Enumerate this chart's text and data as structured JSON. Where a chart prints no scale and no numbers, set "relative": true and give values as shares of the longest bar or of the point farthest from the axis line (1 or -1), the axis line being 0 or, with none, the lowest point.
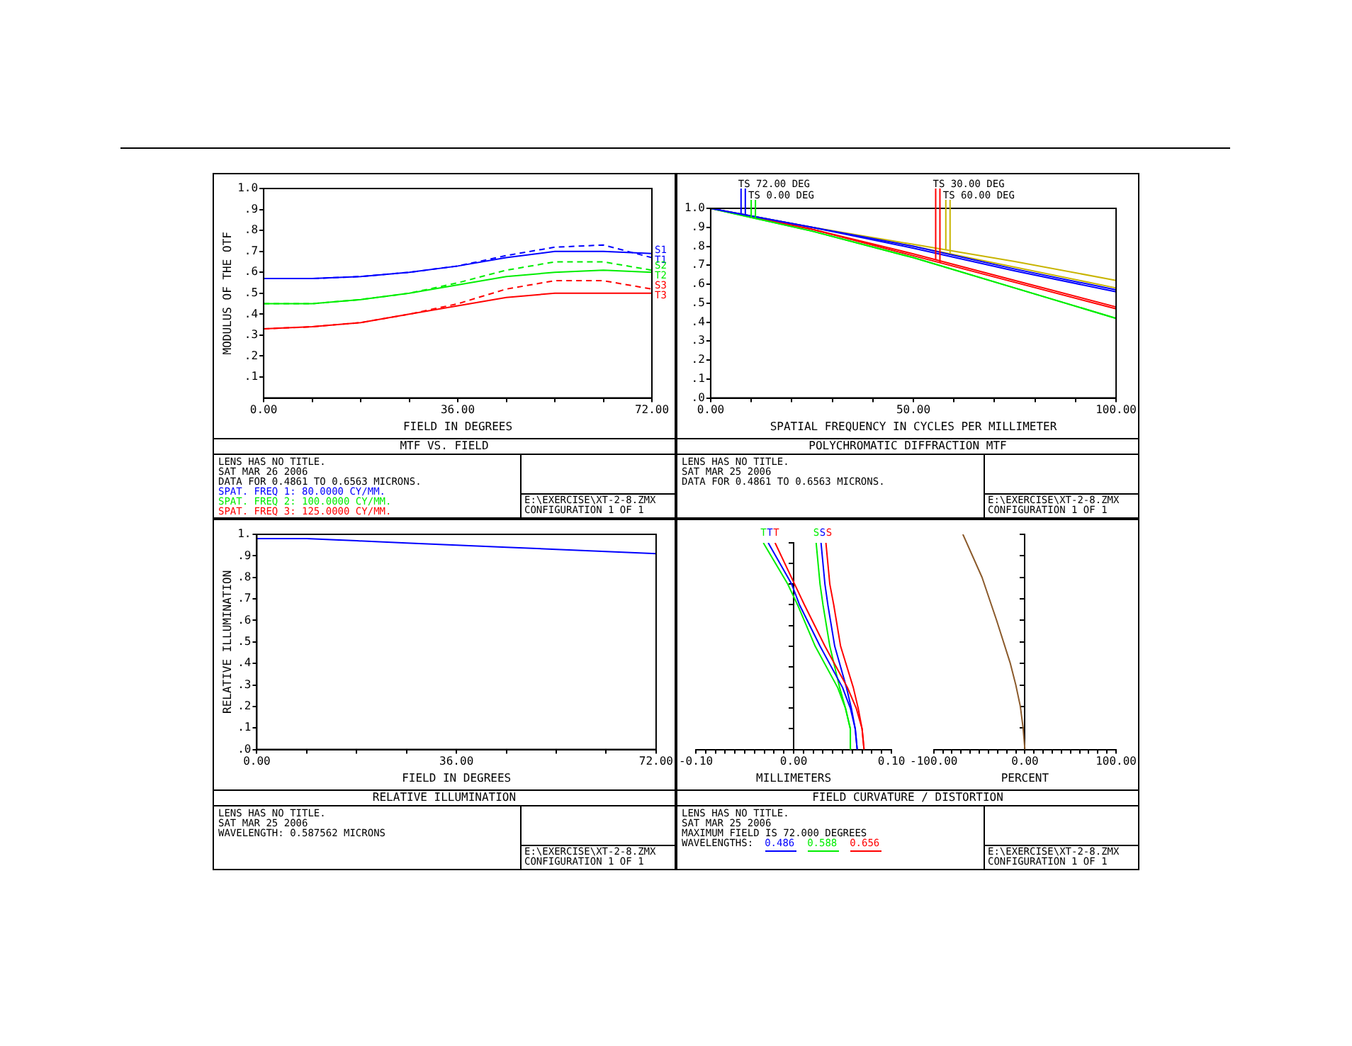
{
  "chart_data": [
    {
      "type": "line",
      "title": "MTF VS. FIELD",
      "xlabel": "FIELD IN DEGREES",
      "ylabel": "MODULUS OF THE OTF",
      "x": [
        0,
        9,
        18,
        27,
        36,
        45,
        54,
        63,
        72
      ],
      "xlim": [
        0,
        72
      ],
      "xticks": [
        {
          "value": 0,
          "label": "0.00"
        },
        {
          "value": 9,
          "label": null
        },
        {
          "value": 18,
          "label": null
        },
        {
          "value": 27,
          "label": null
        },
        {
          "value": 36,
          "label": "36.00"
        },
        {
          "value": 45,
          "label": null
        },
        {
          "value": 54,
          "label": null
        },
        {
          "value": 63,
          "label": null
        },
        {
          "value": 72,
          "label": "72.00"
        }
      ],
      "ylim": [
        0,
        1
      ],
      "yticks": [
        {
          "value": 0.1,
          "label": ".1"
        },
        {
          "value": 0.2,
          "label": ".2"
        },
        {
          "value": 0.3,
          "label": ".3"
        },
        {
          "value": 0.4,
          "label": ".4"
        },
        {
          "value": 0.5,
          "label": ".5"
        },
        {
          "value": 0.6,
          "label": ".6"
        },
        {
          "value": 0.7,
          "label": ".7"
        },
        {
          "value": 0.8,
          "label": ".8"
        },
        {
          "value": 0.9,
          "label": ".9"
        },
        {
          "value": 1,
          "label": "1.0"
        }
      ],
      "series": [
        {
          "name": "S1",
          "color": "#0000ff",
          "line_style": "dashed",
          "values": [
            0.57,
            0.57,
            0.58,
            0.6,
            0.63,
            0.68,
            0.72,
            0.73,
            0.67
          ]
        },
        {
          "name": "T1",
          "color": "#0000ff",
          "line_style": "solid",
          "values": [
            0.57,
            0.57,
            0.58,
            0.6,
            0.63,
            0.67,
            0.7,
            0.7,
            0.69
          ]
        },
        {
          "name": "S2",
          "color": "#00ee00",
          "line_style": "dashed",
          "values": [
            0.45,
            0.45,
            0.47,
            0.5,
            0.55,
            0.61,
            0.65,
            0.65,
            0.61
          ]
        },
        {
          "name": "T2",
          "color": "#00ee00",
          "line_style": "solid",
          "values": [
            0.45,
            0.45,
            0.47,
            0.5,
            0.54,
            0.58,
            0.6,
            0.61,
            0.6
          ]
        },
        {
          "name": "S3",
          "color": "#ff0000",
          "line_style": "dashed",
          "values": [
            0.33,
            0.34,
            0.36,
            0.4,
            0.45,
            0.52,
            0.56,
            0.56,
            0.52
          ]
        },
        {
          "name": "T3",
          "color": "#ff0000",
          "line_style": "solid",
          "values": [
            0.33,
            0.34,
            0.36,
            0.4,
            0.44,
            0.48,
            0.5,
            0.5,
            0.5
          ]
        }
      ],
      "annotations": [
        "LENS HAS NO TITLE.",
        "SAT MAR 26 2006",
        "DATA FOR 0.4861 TO 0.6563 MICRONS.",
        "SPAT. FREQ 1:  80.0000 CY/MM.",
        "SPAT. FREQ 2: 100.0000 CY/MM.",
        "SPAT. FREQ 3: 125.0000 CY/MM.",
        "E:\\EXERCISE\\XT-2-8.ZMX",
        "CONFIGURATION 1 OF 1"
      ]
    },
    {
      "type": "line",
      "title": "POLYCHROMATIC DIFFRACTION MTF",
      "xlabel": "SPATIAL FREQUENCY IN CYCLES PER MILLIMETER",
      "x": [
        0,
        25,
        50,
        75,
        100
      ],
      "xlim": [
        0,
        100
      ],
      "xticks": [
        {
          "value": 0,
          "label": "0.00"
        },
        {
          "value": 10,
          "label": null
        },
        {
          "value": 20,
          "label": null
        },
        {
          "value": 30,
          "label": null
        },
        {
          "value": 40,
          "label": null
        },
        {
          "value": 50,
          "label": "50.00"
        },
        {
          "value": 60,
          "label": null
        },
        {
          "value": 70,
          "label": null
        },
        {
          "value": 80,
          "label": null
        },
        {
          "value": 90,
          "label": null
        },
        {
          "value": 100,
          "label": "100.00"
        }
      ],
      "ylim": [
        0,
        1
      ],
      "yticks": [
        {
          "value": 0,
          "label": ".0"
        },
        {
          "value": 0.1,
          "label": ".1"
        },
        {
          "value": 0.2,
          "label": ".2"
        },
        {
          "value": 0.3,
          "label": ".3"
        },
        {
          "value": 0.4,
          "label": ".4"
        },
        {
          "value": 0.5,
          "label": ".5"
        },
        {
          "value": 0.6,
          "label": ".6"
        },
        {
          "value": 0.7,
          "label": ".7"
        },
        {
          "value": 0.8,
          "label": ".8"
        },
        {
          "value": 0.9,
          "label": ".9"
        },
        {
          "value": 1,
          "label": "1.0"
        }
      ],
      "series": [
        {
          "name": "TS 72.00 DEG",
          "color": "#0000ff",
          "values": [
            1.0,
            0.9,
            0.8,
            0.68,
            0.57
          ]
        },
        {
          "color": "#0000ff",
          "values": [
            1.0,
            0.9,
            0.79,
            0.67,
            0.56
          ]
        },
        {
          "name": "TS 0.00 DEG",
          "color": "#00ee00",
          "values": [
            1.0,
            0.88,
            0.74,
            0.58,
            0.42
          ]
        },
        {
          "color": "#00ee00",
          "values": [
            1.0,
            0.88,
            0.74,
            0.58,
            0.42
          ]
        },
        {
          "name": "TS 30.00 DEG",
          "color": "#ff0000",
          "values": [
            1.0,
            0.89,
            0.76,
            0.62,
            0.48
          ]
        },
        {
          "color": "#ff0000",
          "values": [
            1.0,
            0.89,
            0.75,
            0.61,
            0.47
          ]
        },
        {
          "name": "TS 60.00 DEG",
          "color": "#c8b400",
          "values": [
            1.0,
            0.9,
            0.81,
            0.72,
            0.62
          ]
        },
        {
          "color": "#c8b400",
          "values": [
            1.0,
            0.9,
            0.8,
            0.69,
            0.58
          ]
        }
      ],
      "annotations": [
        "LENS HAS NO TITLE.",
        "SAT MAR 25 2006",
        "DATA FOR 0.4861 TO 0.6563 MICRONS.",
        "E:\\EXERCISE\\XT-2-8.ZMX",
        "CONFIGURATION 1 OF 1"
      ]
    },
    {
      "type": "line",
      "title": "RELATIVE ILLUMINATION",
      "xlabel": "FIELD IN DEGREES",
      "ylabel": "RELATIVE ILLUMINATION",
      "x": [
        0,
        9,
        18,
        27,
        36,
        45,
        54,
        63,
        72
      ],
      "xlim": [
        0,
        72
      ],
      "xticks": [
        {
          "value": 0,
          "label": "0.00"
        },
        {
          "value": 9,
          "label": null
        },
        {
          "value": 18,
          "label": null
        },
        {
          "value": 27,
          "label": null
        },
        {
          "value": 36,
          "label": "36.00"
        },
        {
          "value": 45,
          "label": null
        },
        {
          "value": 54,
          "label": null
        },
        {
          "value": 63,
          "label": null
        },
        {
          "value": 72,
          "label": "72.00"
        }
      ],
      "ylim": [
        0,
        1
      ],
      "yticks": [
        {
          "value": 0,
          "label": ".0"
        },
        {
          "value": 0.1,
          "label": ".1"
        },
        {
          "value": 0.2,
          "label": ".2"
        },
        {
          "value": 0.3,
          "label": ".3"
        },
        {
          "value": 0.4,
          "label": ".4"
        },
        {
          "value": 0.5,
          "label": ".5"
        },
        {
          "value": 0.6,
          "label": ".6"
        },
        {
          "value": 0.7,
          "label": ".7"
        },
        {
          "value": 0.8,
          "label": ".8"
        },
        {
          "value": 0.9,
          "label": ".9"
        },
        {
          "value": 1,
          "label": "1."
        }
      ],
      "series": [
        {
          "color": "#0000ff",
          "values": [
            0.98,
            0.98,
            0.97,
            0.96,
            0.95,
            0.94,
            0.93,
            0.92,
            0.91
          ]
        }
      ],
      "annotations": [
        "LENS HAS NO TITLE.",
        "SAT MAR 25 2006",
        "WAVELENGTH: 0.587562 MICRONS",
        "E:\\EXERCISE\\XT-2-8.ZMX",
        "CONFIGURATION 1 OF 1"
      ]
    },
    {
      "type": "line",
      "title": "FIELD CURVATURE / DISTORTION",
      "xlabel": "MILLIMETERS",
      "xlim": [
        -0.1,
        0.1
      ],
      "xticks": [
        {
          "value": -0.1,
          "label": "-0.10"
        },
        {
          "value": -0.09,
          "label": null
        },
        {
          "value": -0.08,
          "label": null
        },
        {
          "value": -0.07,
          "label": null
        },
        {
          "value": -0.06,
          "label": null
        },
        {
          "value": -0.05,
          "label": null
        },
        {
          "value": -0.04,
          "label": null
        },
        {
          "value": -0.03,
          "label": null
        },
        {
          "value": -0.02,
          "label": null
        },
        {
          "value": -0.01,
          "label": null
        },
        {
          "value": 0,
          "label": "0.00"
        },
        {
          "value": 0.01,
          "label": null
        },
        {
          "value": 0.02,
          "label": null
        },
        {
          "value": 0.03,
          "label": null
        },
        {
          "value": 0.04,
          "label": null
        },
        {
          "value": 0.05,
          "label": null
        },
        {
          "value": 0.06,
          "label": null
        },
        {
          "value": 0.07,
          "label": null
        },
        {
          "value": 0.08,
          "label": null
        },
        {
          "value": 0.09,
          "label": null
        },
        {
          "value": 0.1,
          "label": "0.10"
        }
      ],
      "relative": true,
      "tick_labels": "x",
      "series": [
        {
          "name": "T",
          "color": "#0000ff",
          "x": [
            0.065,
            0.063,
            0.058,
            0.05,
            0.027,
            0.006,
            -0.002,
            -0.026
          ],
          "values": [
            0,
            0.1,
            0.2,
            0.3,
            0.5,
            0.7,
            0.8,
            1
          ]
        },
        {
          "name": "T",
          "color": "#00ee00",
          "x": [
            0.059,
            0.058,
            0.053,
            0.045,
            0.022,
            0.004,
            -0.006,
            -0.031
          ],
          "values": [
            0,
            0.1,
            0.2,
            0.3,
            0.5,
            0.7,
            0.8,
            1
          ]
        },
        {
          "name": "T",
          "color": "#ff0000",
          "x": [
            0.072,
            0.07,
            0.064,
            0.055,
            0.032,
            0.011,
            0.001,
            -0.019
          ],
          "values": [
            0,
            0.1,
            0.2,
            0.3,
            0.5,
            0.7,
            0.8,
            1
          ]
        },
        {
          "name": "S",
          "color": "#0000ff",
          "x": [
            0.065,
            0.063,
            0.059,
            0.054,
            0.042,
            0.035,
            0.032,
            0.028
          ],
          "values": [
            0,
            0.1,
            0.2,
            0.3,
            0.5,
            0.7,
            0.8,
            1
          ]
        },
        {
          "name": "S",
          "color": "#00ee00",
          "x": [
            0.059,
            0.058,
            0.053,
            0.047,
            0.037,
            0.03,
            0.027,
            0.023
          ],
          "values": [
            0,
            0.1,
            0.2,
            0.3,
            0.5,
            0.7,
            0.8,
            1
          ]
        },
        {
          "name": "S",
          "color": "#ff0000",
          "x": [
            0.072,
            0.07,
            0.066,
            0.061,
            0.048,
            0.041,
            0.037,
            0.033
          ],
          "values": [
            0,
            0.1,
            0.2,
            0.3,
            0.5,
            0.7,
            0.8,
            1
          ]
        }
      ],
      "annotations": [
        "LENS HAS NO TITLE.",
        "SAT MAR 25 2006",
        "MAXIMUM FIELD IS 72.000 DEGREES",
        "WAVELENGTHS:",
        "0.486",
        "0.588",
        "0.656",
        "E:\\EXERCISE\\XT-2-8.ZMX",
        "CONFIGURATION 1 OF 1"
      ]
    },
    {
      "type": "line",
      "xlabel": "PERCENT",
      "xlim": [
        -100,
        100
      ],
      "xticks": [
        {
          "value": -100,
          "label": "-100.00"
        },
        {
          "value": -90,
          "label": null
        },
        {
          "value": -80,
          "label": null
        },
        {
          "value": -70,
          "label": null
        },
        {
          "value": -60,
          "label": null
        },
        {
          "value": -50,
          "label": null
        },
        {
          "value": -40,
          "label": null
        },
        {
          "value": -30,
          "label": null
        },
        {
          "value": -20,
          "label": null
        },
        {
          "value": -10,
          "label": null
        },
        {
          "value": 0,
          "label": "0.00"
        },
        {
          "value": 10,
          "label": null
        },
        {
          "value": 20,
          "label": null
        },
        {
          "value": 30,
          "label": null
        },
        {
          "value": 40,
          "label": null
        },
        {
          "value": 50,
          "label": null
        },
        {
          "value": 60,
          "label": null
        },
        {
          "value": 70,
          "label": null
        },
        {
          "value": 80,
          "label": null
        },
        {
          "value": 90,
          "label": null
        },
        {
          "value": 100,
          "label": "100.00"
        }
      ],
      "relative": true,
      "tick_labels": "x",
      "series": [
        {
          "color": "#8b5a2b",
          "x": [
            0,
            -2,
            -5,
            -10,
            -16,
            -31,
            -47,
            -68
          ],
          "values": [
            0,
            0.1,
            0.2,
            0.3,
            0.4,
            0.6,
            0.8,
            1
          ]
        }
      ]
    }
  ]
}
